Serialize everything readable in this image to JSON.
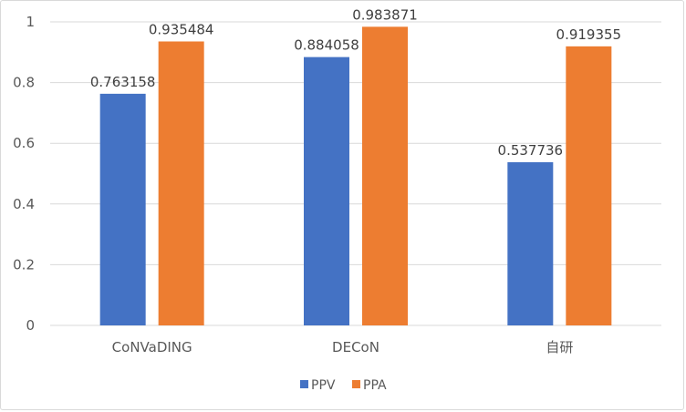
{
  "chart_data": {
    "type": "bar",
    "categories": [
      "CoNVaDING",
      "DECoN",
      "自研"
    ],
    "series": [
      {
        "name": "PPV",
        "values": [
          0.763158,
          0.884058,
          0.537736
        ],
        "color": "#4472C4"
      },
      {
        "name": "PPA",
        "values": [
          0.935484,
          0.983871,
          0.919355
        ],
        "color": "#ED7D31"
      }
    ],
    "ylim": [
      0,
      1
    ],
    "yticks": [
      "0",
      "0.2",
      "0.4",
      "0.6",
      "0.8",
      "1"
    ],
    "grid": true,
    "legend": "bottom",
    "data_labels": true
  }
}
